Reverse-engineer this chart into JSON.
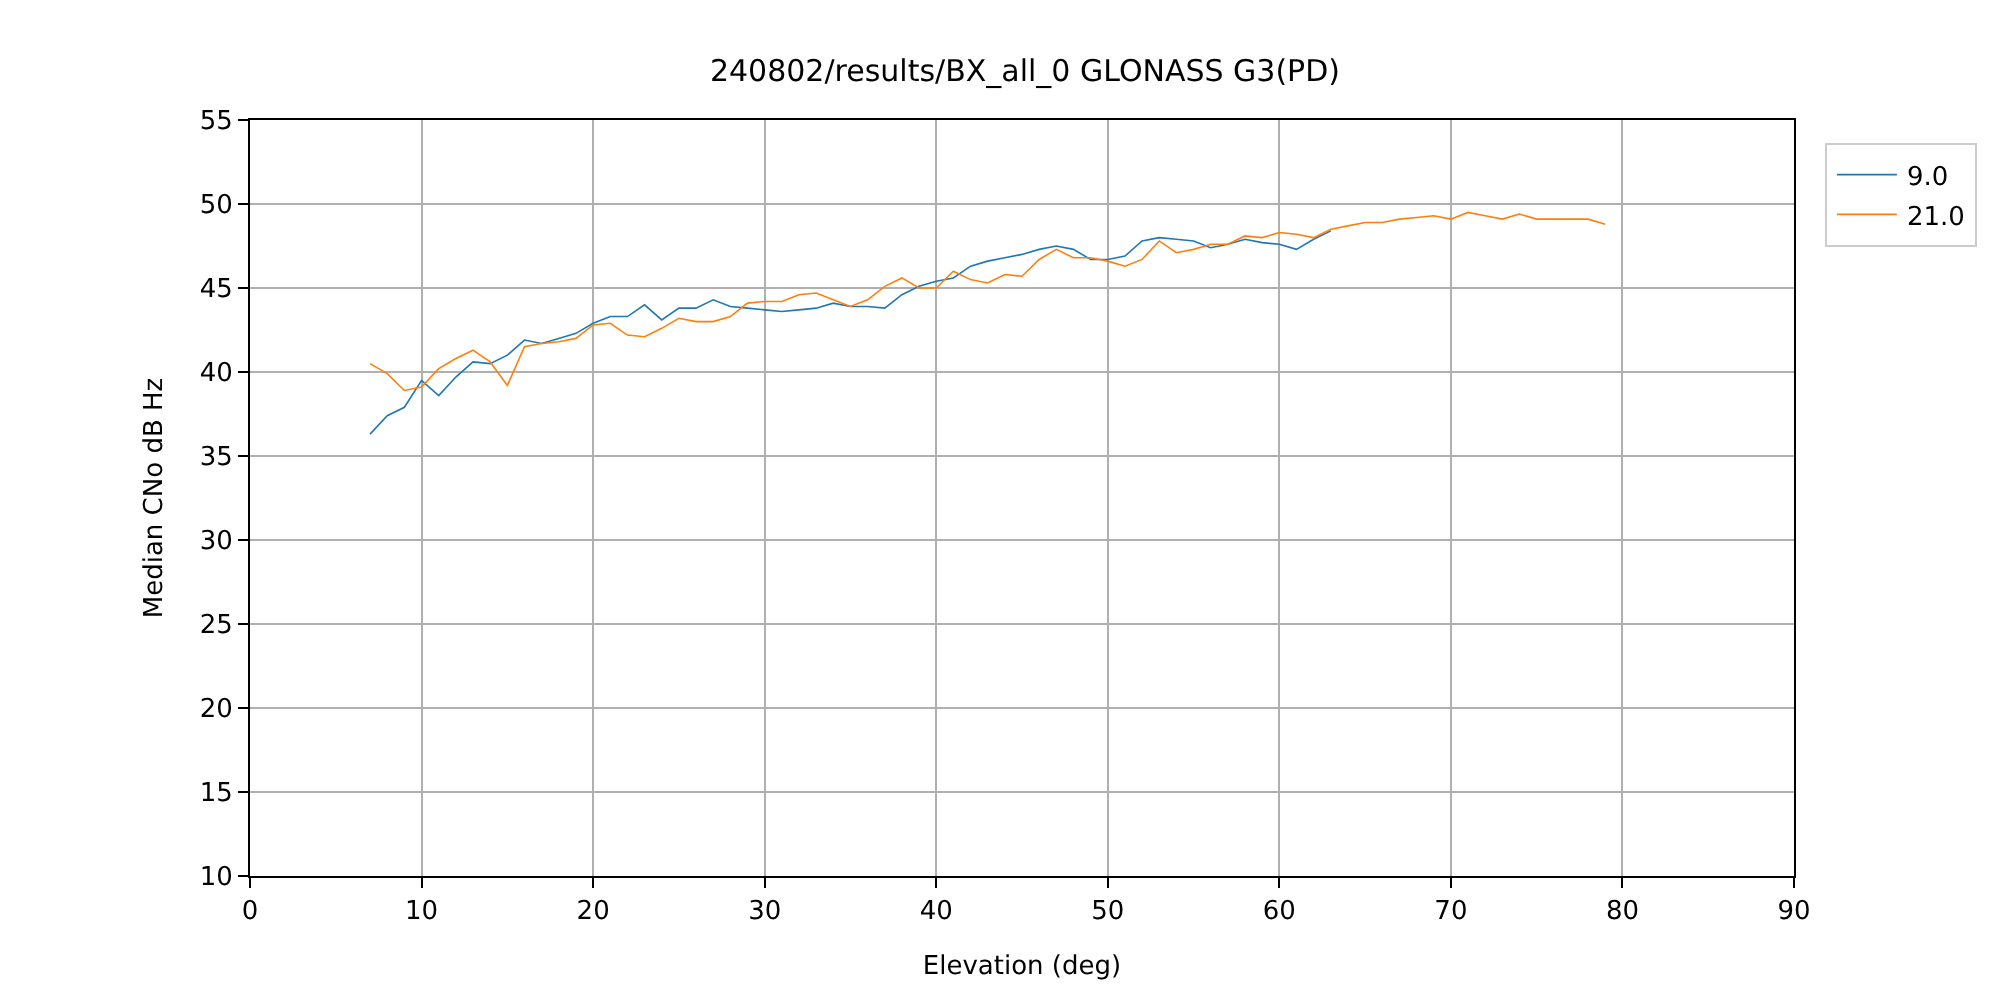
{
  "chart_data": {
    "type": "line",
    "title": "240802/results/BX_all_0 GLONASS G3(PD)",
    "xlabel": "Elevation (deg)",
    "ylabel": "Median CNo dB Hz",
    "xlim": [
      0,
      90
    ],
    "xticks": [
      0,
      10,
      20,
      30,
      40,
      50,
      60,
      70,
      80,
      90
    ],
    "ylim": [
      10,
      55
    ],
    "yticks": [
      10,
      15,
      20,
      25,
      30,
      35,
      40,
      45,
      50,
      55
    ],
    "grid": true,
    "legend": "top right",
    "marker": "none",
    "line_style": "solid",
    "series": [
      {
        "name": "9.0",
        "color": "#1f77b4",
        "x": [
          7,
          8,
          9,
          10,
          11,
          12,
          13,
          14,
          15,
          16,
          17,
          18,
          19,
          20,
          21,
          22,
          23,
          24,
          25,
          26,
          27,
          28,
          29,
          30,
          31,
          32,
          33,
          34,
          35,
          36,
          37,
          38,
          39,
          40,
          41,
          42,
          43,
          44,
          45,
          46,
          47,
          48,
          49,
          50,
          51,
          52,
          53,
          54,
          55,
          56,
          57,
          58,
          59,
          60,
          61,
          62,
          63
        ],
        "values": [
          36.3,
          37.4,
          37.9,
          39.5,
          38.6,
          39.7,
          40.6,
          40.5,
          41.0,
          41.9,
          41.7,
          42.0,
          42.3,
          42.9,
          43.3,
          43.3,
          44.0,
          43.1,
          43.8,
          43.8,
          44.3,
          43.9,
          43.8,
          43.7,
          43.6,
          43.7,
          43.8,
          44.1,
          43.9,
          43.9,
          43.8,
          44.6,
          45.1,
          45.4,
          45.6,
          46.3,
          46.6,
          46.8,
          47.0,
          47.3,
          47.5,
          47.3,
          46.7,
          46.7,
          46.9,
          47.8,
          48.0,
          47.9,
          47.8,
          47.4,
          47.6,
          47.9,
          47.7,
          47.6,
          47.3,
          47.9,
          48.4
        ]
      },
      {
        "name": "21.0",
        "color": "#ff7f0e",
        "x": [
          7,
          8,
          9,
          10,
          11,
          12,
          13,
          14,
          15,
          16,
          17,
          18,
          19,
          20,
          21,
          22,
          23,
          24,
          25,
          26,
          27,
          28,
          29,
          30,
          31,
          32,
          33,
          34,
          35,
          36,
          37,
          38,
          39,
          40,
          41,
          42,
          43,
          44,
          45,
          46,
          47,
          48,
          49,
          50,
          51,
          52,
          53,
          54,
          55,
          56,
          57,
          58,
          59,
          60,
          61,
          62,
          63,
          64,
          65,
          66,
          67,
          68,
          69,
          70,
          71,
          72,
          73,
          74,
          75,
          76,
          77,
          78,
          79
        ],
        "values": [
          40.5,
          39.9,
          38.9,
          39.1,
          40.2,
          40.8,
          41.3,
          40.6,
          39.2,
          41.5,
          41.7,
          41.8,
          42.0,
          42.8,
          42.9,
          42.2,
          42.1,
          42.6,
          43.2,
          43.0,
          43.0,
          43.3,
          44.1,
          44.2,
          44.2,
          44.6,
          44.7,
          44.3,
          43.9,
          44.3,
          45.1,
          45.6,
          45.0,
          45.0,
          46.0,
          45.5,
          45.3,
          45.8,
          45.7,
          46.7,
          47.3,
          46.8,
          46.8,
          46.6,
          46.3,
          46.7,
          47.8,
          47.1,
          47.3,
          47.6,
          47.6,
          48.1,
          48.0,
          48.3,
          48.2,
          48.0,
          48.5,
          48.7,
          48.9,
          48.9,
          49.1,
          49.2,
          49.3,
          49.1,
          49.5,
          49.3,
          49.1,
          49.4,
          49.1,
          49.1,
          49.1,
          49.1,
          48.8
        ]
      }
    ]
  }
}
